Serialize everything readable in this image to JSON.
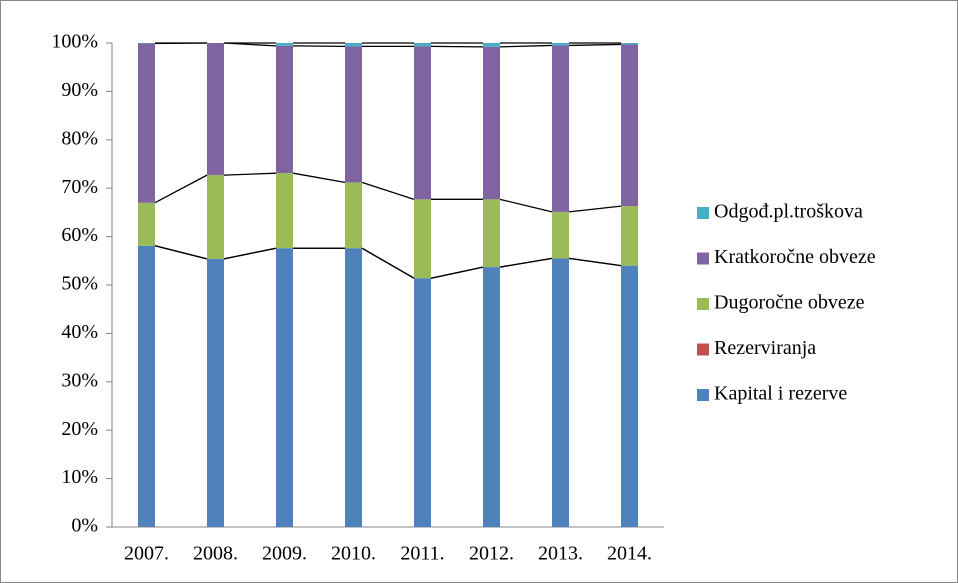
{
  "chart_data": {
    "type": "bar",
    "stacked": true,
    "series_lines": true,
    "categories": [
      "2007.",
      "2008.",
      "2009.",
      "2010.",
      "2011.",
      "2012.",
      "2013.",
      "2014."
    ],
    "series": [
      {
        "name": "Kapital i rezerve",
        "color": "#4f81bd",
        "values": [
          58.1,
          55.4,
          57.6,
          57.6,
          51.4,
          53.7,
          55.5,
          54.0
        ]
      },
      {
        "name": "Rezerviranja",
        "color": "#c0504d",
        "values": [
          0,
          0,
          0,
          0,
          0,
          0,
          0,
          0
        ]
      },
      {
        "name": "Dugoročne obveze",
        "color": "#9bbb59",
        "values": [
          8.9,
          17.3,
          15.5,
          13.6,
          16.3,
          14.0,
          9.6,
          12.3
        ]
      },
      {
        "name": "Kratkoročne obveze",
        "color": "#8064a2",
        "values": [
          32.9,
          27.3,
          26.3,
          28.1,
          31.6,
          31.5,
          34.4,
          33.4
        ]
      },
      {
        "name": "Odgođ.pl.troškova",
        "color": "#4bacc6",
        "values": [
          0.1,
          0,
          0.6,
          0.7,
          0.7,
          0.8,
          0.5,
          0.3
        ]
      }
    ],
    "ylim": [
      0,
      100
    ],
    "yticks": [
      {
        "value": 0,
        "label": "0%"
      },
      {
        "value": 10,
        "label": "10%"
      },
      {
        "value": 20,
        "label": "20%"
      },
      {
        "value": 30,
        "label": "30%"
      },
      {
        "value": 40,
        "label": "40%"
      },
      {
        "value": 50,
        "label": "50%"
      },
      {
        "value": 60,
        "label": "60%"
      },
      {
        "value": 70,
        "label": "70%"
      },
      {
        "value": 80,
        "label": "80%"
      },
      {
        "value": 90,
        "label": "90%"
      },
      {
        "value": 100,
        "label": "100%"
      }
    ],
    "legend": "right"
  }
}
